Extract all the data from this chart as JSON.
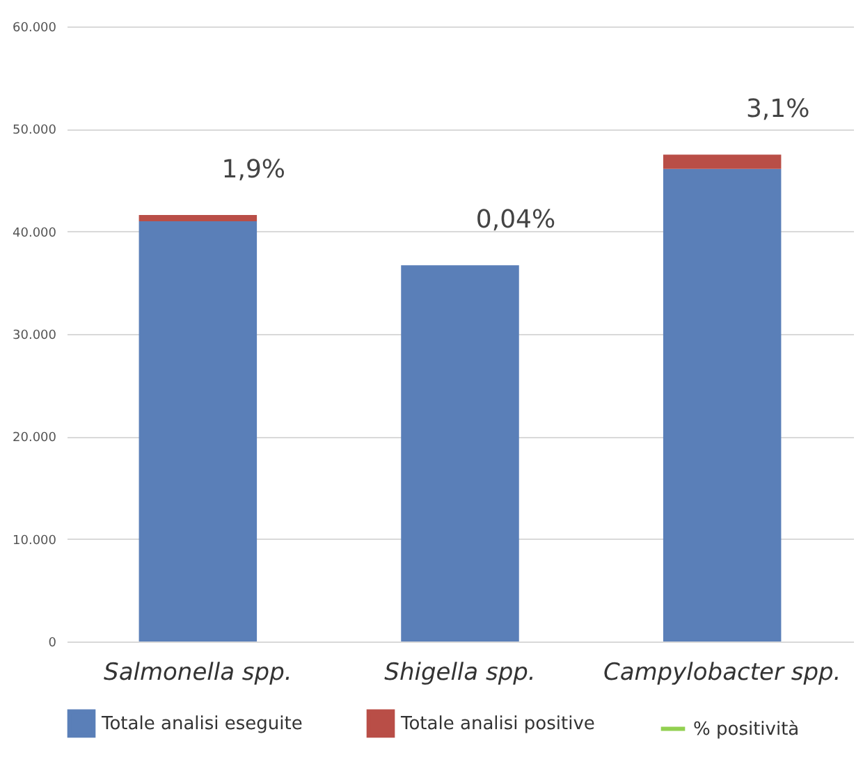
{
  "chart_data": {
    "type": "bar",
    "stacked": true,
    "categories": [
      "Salmonella spp.",
      "Shigella spp.",
      "Campylobacter spp."
    ],
    "series": [
      {
        "name": "Totale analisi eseguite",
        "color": "#5a7fb8",
        "values": [
          41000,
          36700,
          46100
        ]
      },
      {
        "name": "Totale analisi positive",
        "color": "#b94e47",
        "values": [
          600,
          0,
          1400
        ]
      },
      {
        "name": "% positività",
        "color": "#92d050",
        "type": "line",
        "values": [
          null,
          null,
          null
        ]
      }
    ],
    "ylim": [
      0,
      60000
    ],
    "yticks": [
      0,
      {
        "value": 10000,
        "label": "10.000"
      },
      {
        "value": 20000,
        "label": "20.000"
      },
      {
        "value": 30000,
        "label": "30.000"
      },
      {
        "value": 40000,
        "label": "40.000"
      },
      {
        "value": 50000,
        "label": "50.000"
      },
      {
        "value": 60000,
        "label": "60.000"
      }
    ],
    "grid": "y",
    "legend": "bottom",
    "annotations": [
      {
        "text": "1,9%",
        "x": "Salmonella spp.",
        "y": 41600
      },
      {
        "text": "0,04%",
        "x": "Shigella spp.",
        "y": 36700
      },
      {
        "text": "3,1%",
        "x": "Campylobacter spp.",
        "y": 47500
      }
    ]
  }
}
